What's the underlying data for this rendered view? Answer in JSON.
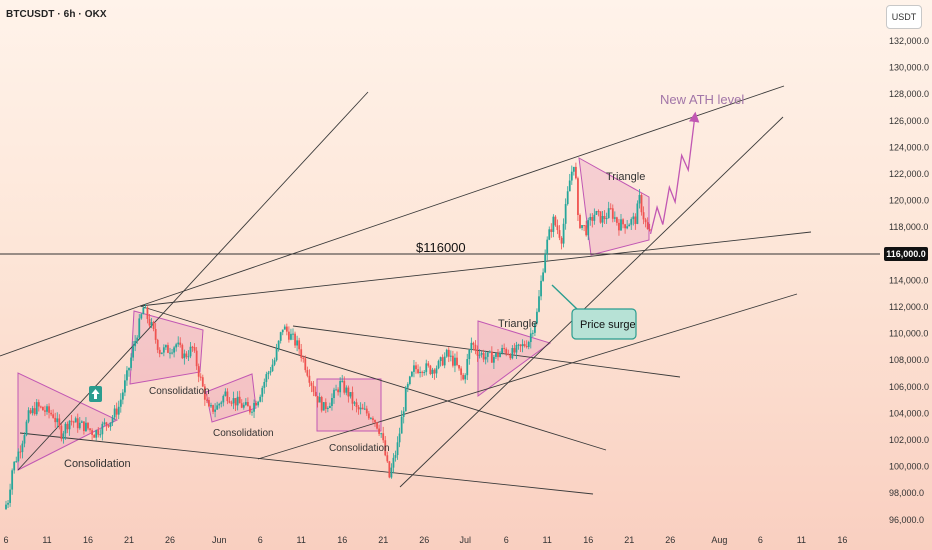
{
  "header": {
    "title": "BTCUSDT · 6h · OKX",
    "unit": "USDT"
  },
  "price_tag": "116,000.0",
  "colors": {
    "up": "#26a69a",
    "down": "#ef5350",
    "pattern": "#c157b3",
    "annotation": "#2a9d8f"
  },
  "chart_data": {
    "type": "candlestick",
    "title": "",
    "xlabel": "",
    "ylabel": "",
    "ylim": [
      95000,
      133500
    ],
    "ticks_y": [
      "96,000.0",
      "98,000.0",
      "100,000.0",
      "102,000.0",
      "104,000.0",
      "106,000.0",
      "108,000.0",
      "110,000.0",
      "112,000.0",
      "114,000.0",
      "118,000.0",
      "120,000.0",
      "122,000.0",
      "124,000.0",
      "126,000.0",
      "128,000.0",
      "130,000.0",
      "132,000.0"
    ],
    "ticks_x": [
      {
        "label": "6",
        "day": 0
      },
      {
        "label": "11",
        "day": 5
      },
      {
        "label": "16",
        "day": 10
      },
      {
        "label": "21",
        "day": 15
      },
      {
        "label": "26",
        "day": 20
      },
      {
        "label": "Jun",
        "day": 26
      },
      {
        "label": "6",
        "day": 31
      },
      {
        "label": "11",
        "day": 36
      },
      {
        "label": "16",
        "day": 41
      },
      {
        "label": "21",
        "day": 46
      },
      {
        "label": "26",
        "day": 51
      },
      {
        "label": "Jul",
        "day": 56
      },
      {
        "label": "6",
        "day": 61
      },
      {
        "label": "11",
        "day": 66
      },
      {
        "label": "16",
        "day": 71
      },
      {
        "label": "21",
        "day": 76
      },
      {
        "label": "26",
        "day": 81
      },
      {
        "label": "Aug",
        "day": 87
      },
      {
        "label": "6",
        "day": 92
      },
      {
        "label": "11",
        "day": 97
      },
      {
        "label": "16",
        "day": 102
      }
    ],
    "price_path": [
      [
        0,
        96800
      ],
      [
        0.5,
        97500
      ],
      [
        1,
        99800
      ],
      [
        2,
        101500
      ],
      [
        3,
        103800
      ],
      [
        4,
        104500
      ],
      [
        5,
        104200
      ],
      [
        6,
        103900
      ],
      [
        7,
        102500
      ],
      [
        8,
        103500
      ],
      [
        9,
        103200
      ],
      [
        10,
        103000
      ],
      [
        11,
        102500
      ],
      [
        12,
        103000
      ],
      [
        13,
        103500
      ],
      [
        14,
        104500
      ],
      [
        15,
        106800
      ],
      [
        16,
        109500
      ],
      [
        17,
        111900
      ],
      [
        18,
        110500
      ],
      [
        19,
        108700
      ],
      [
        20,
        108800
      ],
      [
        21,
        109200
      ],
      [
        22,
        108300
      ],
      [
        23,
        108900
      ],
      [
        24,
        106500
      ],
      [
        25,
        104200
      ],
      [
        26,
        104500
      ],
      [
        27,
        105500
      ],
      [
        28,
        105000
      ],
      [
        29,
        104600
      ],
      [
        30,
        104300
      ],
      [
        31,
        105200
      ],
      [
        32,
        106800
      ],
      [
        33,
        108000
      ],
      [
        34,
        110500
      ],
      [
        35,
        109800
      ],
      [
        36,
        108900
      ],
      [
        37,
        107200
      ],
      [
        38,
        105400
      ],
      [
        39,
        104400
      ],
      [
        40,
        105100
      ],
      [
        41,
        106200
      ],
      [
        42,
        105500
      ],
      [
        43,
        104300
      ],
      [
        44,
        104100
      ],
      [
        45,
        103800
      ],
      [
        46,
        102500
      ],
      [
        47,
        99200
      ],
      [
        48,
        101600
      ],
      [
        49,
        105500
      ],
      [
        50,
        107300
      ],
      [
        51,
        107500
      ],
      [
        52,
        107300
      ],
      [
        53,
        107600
      ],
      [
        54,
        108400
      ],
      [
        55,
        107800
      ],
      [
        56,
        106500
      ],
      [
        57,
        109300
      ],
      [
        58,
        108500
      ],
      [
        59,
        108200
      ],
      [
        60,
        108300
      ],
      [
        61,
        108800
      ],
      [
        62,
        108500
      ],
      [
        63,
        108900
      ],
      [
        64,
        109500
      ],
      [
        65,
        111500
      ],
      [
        66,
        116200
      ],
      [
        66.5,
        117500
      ],
      [
        67,
        118500
      ],
      [
        68,
        117200
      ],
      [
        69,
        121500
      ],
      [
        69.6,
        123200
      ],
      [
        70,
        118500
      ],
      [
        71,
        117800
      ],
      [
        72,
        119000
      ],
      [
        73,
        118600
      ],
      [
        74,
        119200
      ],
      [
        75,
        118200
      ],
      [
        76,
        118300
      ],
      [
        77,
        118600
      ],
      [
        77.5,
        120100
      ],
      [
        78,
        118800
      ],
      [
        78.6,
        117500
      ]
    ],
    "series": [
      {
        "name": "",
        "price_path_ref": "price_path"
      }
    ],
    "horizontal_lines": [
      {
        "price": 116000,
        "label": "$116000"
      }
    ],
    "annotations": [
      {
        "text": "Consolidation",
        "kind": "pattern-label"
      },
      {
        "text": "Consolidation",
        "kind": "pattern-label"
      },
      {
        "text": "Consolidation",
        "kind": "pattern-label"
      },
      {
        "text": "Consolidation",
        "kind": "pattern-label"
      },
      {
        "text": "Triangle",
        "kind": "pattern-label"
      },
      {
        "text": "Triangle",
        "kind": "pattern-label"
      },
      {
        "text": "New ATH level",
        "kind": "target-label"
      },
      {
        "text": "Price surge",
        "kind": "callout"
      }
    ],
    "projection_path": [
      [
        78.6,
        117500
      ],
      [
        79.4,
        119500
      ],
      [
        80.1,
        118200
      ],
      [
        80.9,
        121000
      ],
      [
        81.6,
        119900
      ],
      [
        82.4,
        123400
      ],
      [
        83.2,
        122300
      ],
      [
        84,
        126300
      ]
    ],
    "grid": false,
    "legend": "none"
  }
}
